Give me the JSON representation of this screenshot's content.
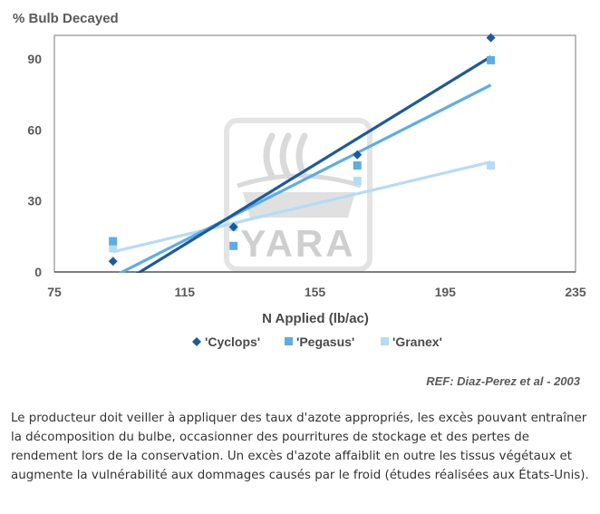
{
  "chart_data": {
    "type": "scatter",
    "ylabel": "% Bulb Decayed",
    "xlabel": "N Applied (lb/ac)",
    "xlim": [
      75,
      235
    ],
    "ylim": [
      0,
      100
    ],
    "xticks": [
      "75",
      "115",
      "155",
      "195",
      "235"
    ],
    "yticks": [
      "0",
      "30",
      "60",
      "90"
    ],
    "grid": false,
    "legend_position": "bottom",
    "series": [
      {
        "name": "'Cyclops'",
        "marker": "diamond",
        "color": "#1a5a9e",
        "x": [
          93,
          130,
          168,
          209
        ],
        "y": [
          4.5,
          19,
          49.5,
          99
        ],
        "trendline": [
          [
            93,
            -7
          ],
          [
            209,
            91
          ]
        ]
      },
      {
        "name": "'Pegasus'",
        "marker": "square",
        "color": "#5aaee8",
        "x": [
          93,
          130,
          168,
          209
        ],
        "y": [
          13,
          11,
          45,
          89.5
        ],
        "trendline": [
          [
            93,
            -2
          ],
          [
            209,
            79
          ]
        ]
      },
      {
        "name": "'Granex'",
        "marker": "square",
        "color": "#b3dcf6",
        "x": [
          93,
          130,
          168,
          209
        ],
        "y": [
          10,
          19,
          38.5,
          45
        ],
        "trendline": [
          [
            93,
            8.5
          ],
          [
            209,
            46.5
          ]
        ]
      }
    ]
  },
  "reference": "REF: Diaz-Perez et al - 2003",
  "watermark": "YARA",
  "caption": "Le producteur doit veiller à appliquer des taux d'azote appropriés, les excès pouvant entraîner la décomposition du bulbe, occasionner des pourritures de stockage et des pertes de rendement lors de la conservation. Un excès d'azote affaiblit en outre les tissus végétaux et augmente la vulnérabilité aux dommages causés par le froid (études réalisées aux États-Unis)."
}
